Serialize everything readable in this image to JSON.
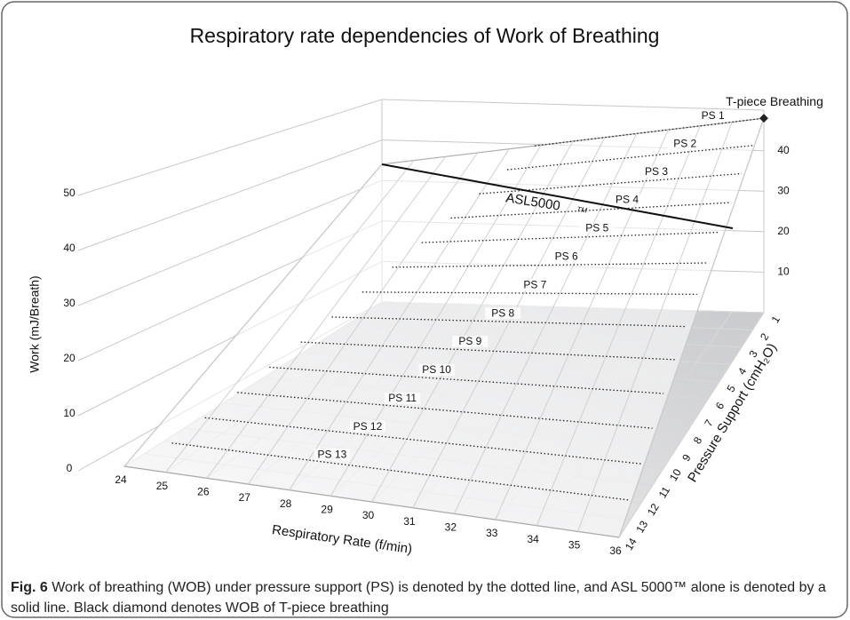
{
  "figure": {
    "title": "Respiratory rate dependencies of Work of Breathing",
    "x_axis": {
      "label": "Respiratory Rate (f/min)",
      "ticks": [
        24,
        25,
        26,
        27,
        28,
        29,
        30,
        31,
        32,
        33,
        34,
        35,
        36
      ]
    },
    "y_axis": {
      "label": "Pressure Support (cmH₂O)",
      "ticks": [
        1,
        2,
        3,
        4,
        5,
        6,
        7,
        8,
        9,
        10,
        11,
        12,
        13,
        14
      ]
    },
    "z_axis": {
      "label": "Work (mJ/Breath)",
      "ticks": [
        0,
        10,
        20,
        30,
        40,
        50
      ],
      "back_ticks": [
        10,
        20,
        30,
        40
      ]
    },
    "surface_labels": [
      "PS 1",
      "PS 2",
      "PS 3",
      "PS 4",
      "PS 5",
      "PS 6",
      "PS 7",
      "PS 8",
      "PS 9",
      "PS 10",
      "PS 11",
      "PS 12",
      "PS 13"
    ],
    "annotations": {
      "t_piece": "T-piece Breathing",
      "asl": "ASL5000",
      "asl_mark": "TM"
    },
    "caption": {
      "label": "Fig. 6",
      "text": "Work of breathing (WOB) under pressure support (PS) is denoted by the dotted line, and ASL 5000™ alone is denoted by a solid line. Black diamond denotes WOB of T-piece breathing"
    }
  }
}
